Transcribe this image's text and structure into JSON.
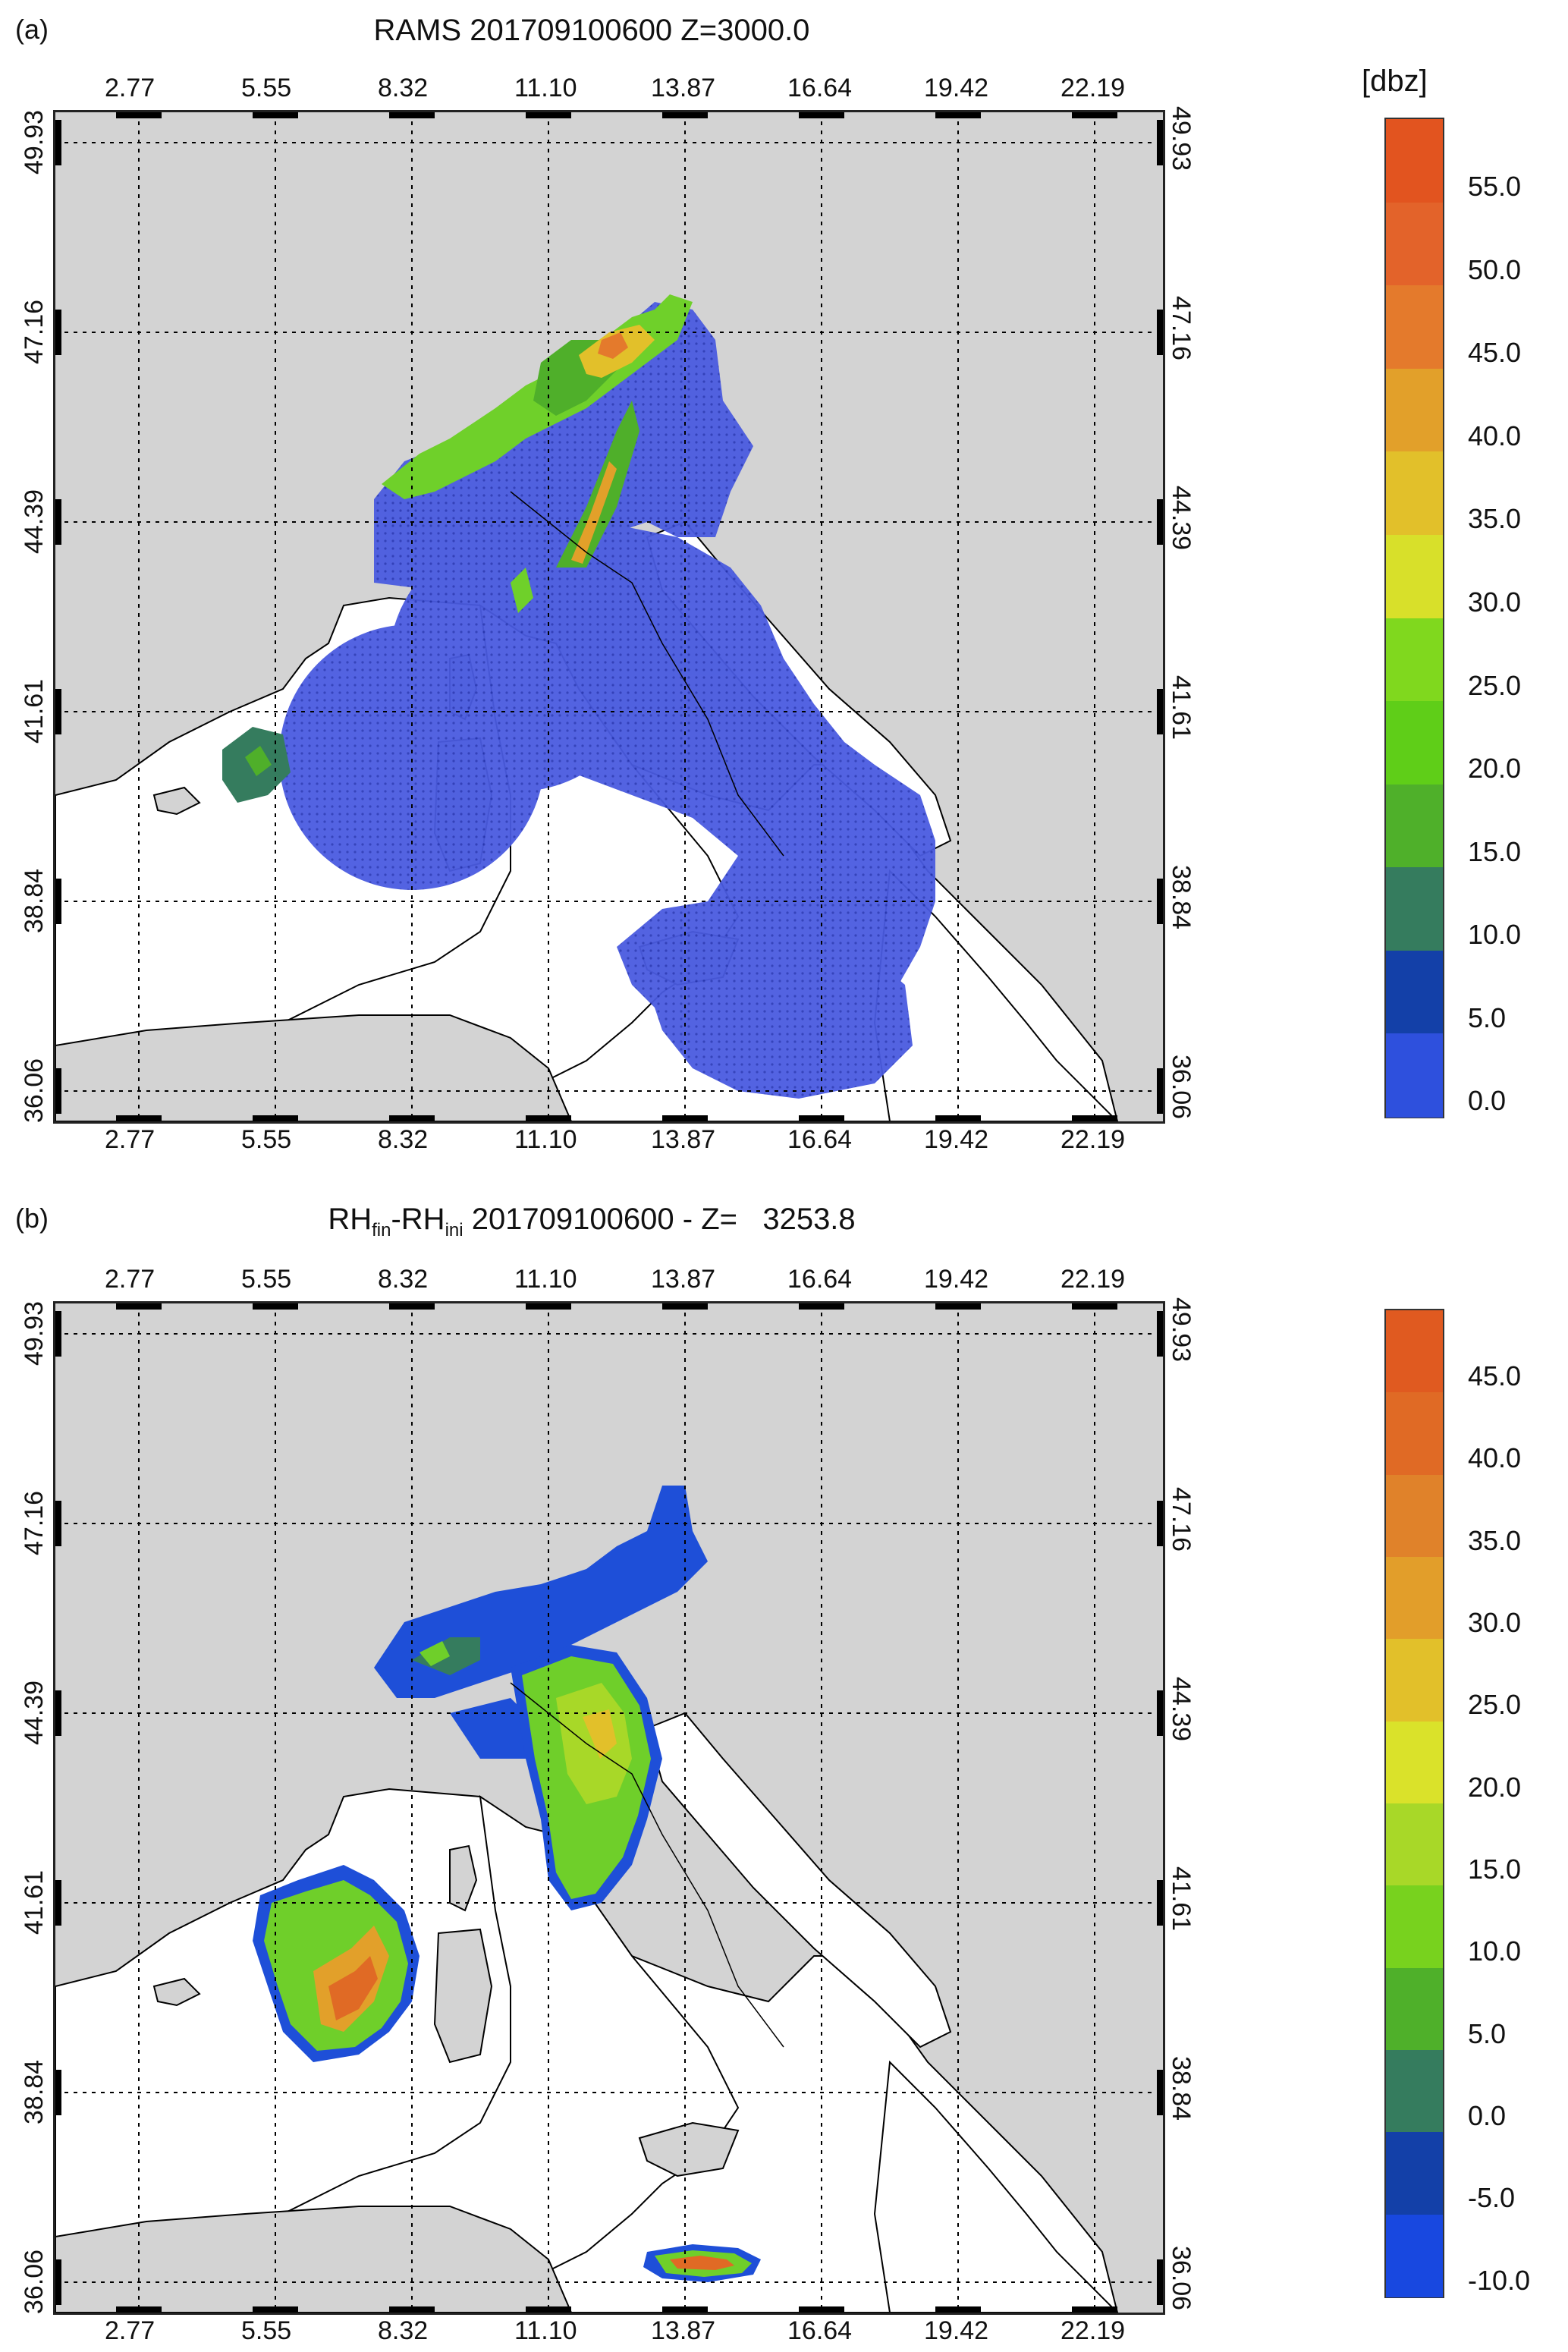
{
  "panel_a": {
    "label": "(a)",
    "title": "RAMS 201709100600  Z=3000.0",
    "lon_ticks": [
      "2.77",
      "5.55",
      "8.32",
      "11.10",
      "13.87",
      "16.64",
      "19.42",
      "22.19"
    ],
    "lat_ticks": [
      "49.93",
      "47.16",
      "44.39",
      "41.61",
      "38.84",
      "36.06"
    ],
    "colorbar_unit": "[dbz]",
    "colorbar_labels": [
      "55.0",
      "50.0",
      "45.0",
      "40.0",
      "35.0",
      "30.0",
      "25.0",
      "20.0",
      "15.0",
      "10.0",
      "5.0",
      "0.0"
    ],
    "colorbar_colors": [
      "#e2541f",
      "#e3632a",
      "#e47a2c",
      "#e2a02a",
      "#e2c02a",
      "#d8e02a",
      "#80d81e",
      "#5fce18",
      "#4fb02a",
      "#357c5e",
      "#1340a8",
      "#2e50dd"
    ]
  },
  "panel_b": {
    "label": "(b)",
    "title_prefix": "RH",
    "title_sub1": "fin",
    "title_mid": "-RH",
    "title_sub2": "ini",
    "title_suffix": " 201709100600 - Z=   3253.8",
    "lon_ticks": [
      "2.77",
      "5.55",
      "8.32",
      "11.10",
      "13.87",
      "16.64",
      "19.42",
      "22.19"
    ],
    "lat_ticks": [
      "49.93",
      "47.16",
      "44.39",
      "41.61",
      "38.84",
      "36.06"
    ],
    "colorbar_labels": [
      "45.0",
      "40.0",
      "35.0",
      "30.0",
      "25.0",
      "20.0",
      "15.0",
      "10.0",
      "5.0",
      "0.0",
      "-5.0",
      "-10.0"
    ],
    "colorbar_colors": [
      "#e05a20",
      "#e06a25",
      "#e0822a",
      "#e29e2a",
      "#e2c02a",
      "#dae22a",
      "#a8d828",
      "#78d21e",
      "#4fb02a",
      "#357c5e",
      "#1340a8",
      "#1848e0"
    ]
  },
  "colors": {
    "land": "#d3d3d3",
    "sea": "#ffffff",
    "reflectivity_base": "#4a5be0",
    "rh_negative": "#1e4fd8",
    "rh_positive": "#6fcf2a"
  }
}
